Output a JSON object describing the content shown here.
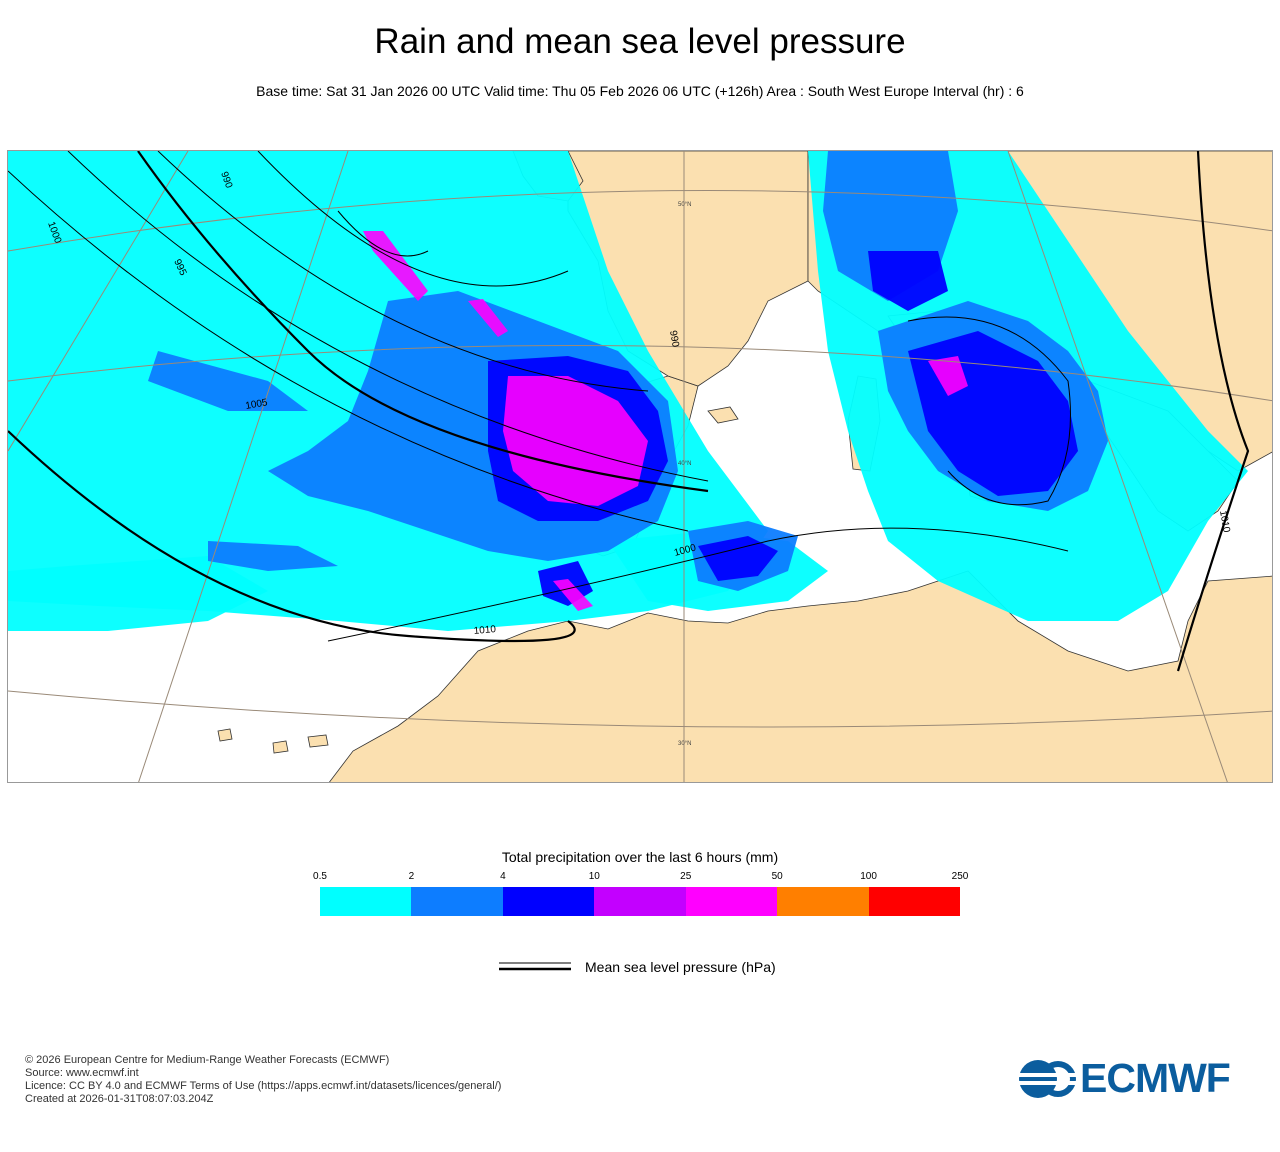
{
  "title": "Rain and mean sea level pressure",
  "subtitle": "Base time: Sat 31 Jan 2026 00 UTC Valid time: Thu 05 Feb 2026 06 UTC (+126h) Area : South West Europe Interval (hr) : 6",
  "map": {
    "isobar_labels": [
      "990",
      "995",
      "990",
      "1000",
      "1005",
      "1000",
      "1010",
      "1010"
    ],
    "grid_labels": [
      "50°N",
      "40°N",
      "30°N"
    ],
    "colors": {
      "land": "#fbe0b0",
      "sea": "#ffffff",
      "isobar": "#000000",
      "graticule": "#9a8a78"
    }
  },
  "colorbar": {
    "title": "Total precipitation over the last 6 hours (mm)",
    "ticks": [
      "0.5",
      "2",
      "4",
      "10",
      "25",
      "50",
      "100",
      "250"
    ],
    "colors": [
      "#00ffff",
      "#0d7dff",
      "#0000ff",
      "#c300ff",
      "#ff00ff",
      "#ff7f00",
      "#ff0000"
    ]
  },
  "legend": {
    "label": "Mean sea level pressure (hPa)"
  },
  "footer": {
    "line1": "© 2026 European Centre for Medium-Range Weather Forecasts (ECMWF)",
    "line2": "Source: www.ecmwf.int",
    "line3": "Licence: CC BY 4.0 and ECMWF Terms of Use (https://apps.ecmwf.int/datasets/licences/general/)",
    "line4": "Created at 2026-01-31T08:07:03.204Z"
  },
  "logo": {
    "text": "ECMWF",
    "color": "#0b5d9e"
  }
}
